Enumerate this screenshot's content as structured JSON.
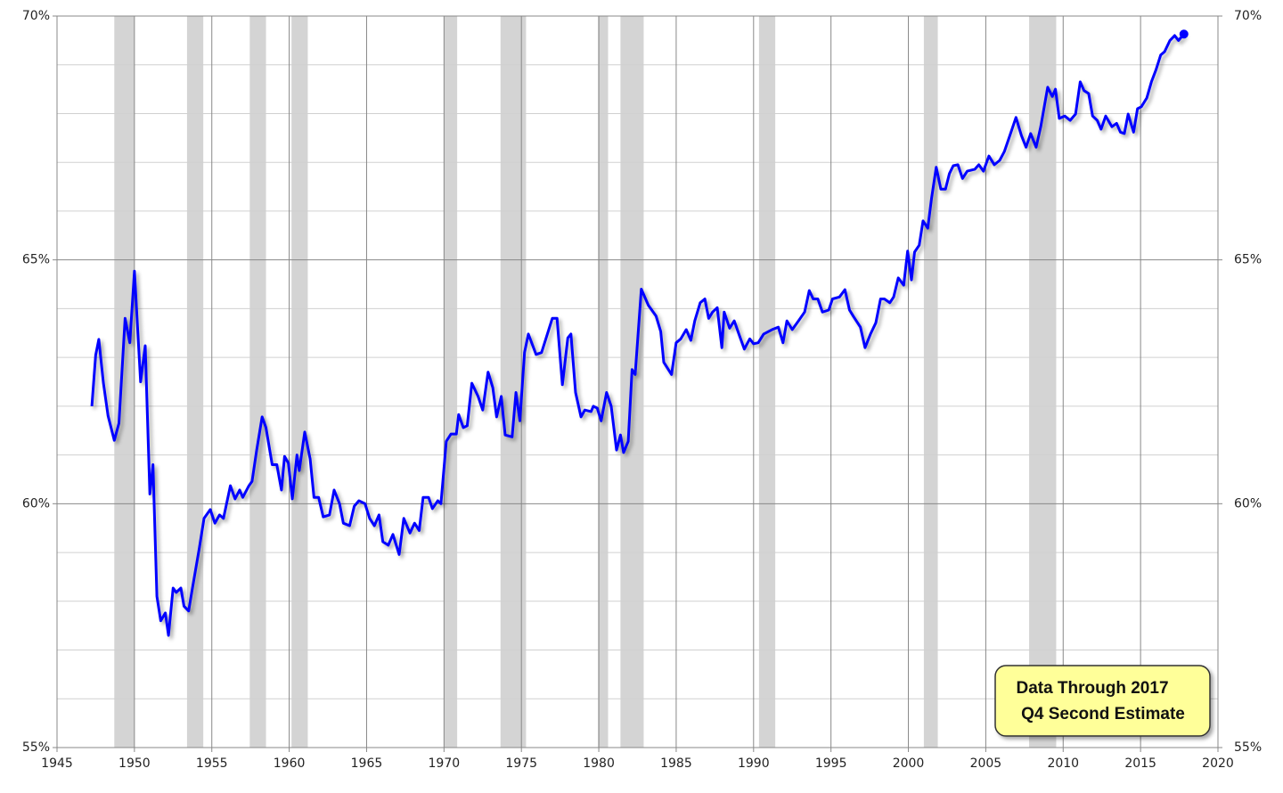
{
  "chart_data": {
    "type": "line",
    "x": [
      1947.25,
      1947.5,
      1947.7,
      1948.0,
      1948.3,
      1948.7,
      1949.0,
      1949.4,
      1949.7,
      1950.0,
      1950.4,
      1950.7,
      1951.0,
      1951.2,
      1951.45,
      1951.7,
      1952.0,
      1952.2,
      1952.5,
      1952.7,
      1953.0,
      1953.2,
      1953.5,
      1953.75,
      1954.2,
      1954.5,
      1954.9,
      1955.2,
      1955.5,
      1955.75,
      1956.2,
      1956.5,
      1956.8,
      1957.0,
      1957.4,
      1957.6,
      1957.9,
      1958.25,
      1958.5,
      1958.9,
      1959.2,
      1959.5,
      1959.7,
      1959.95,
      1960.2,
      1960.5,
      1960.65,
      1961.0,
      1961.35,
      1961.6,
      1961.9,
      1962.2,
      1962.6,
      1962.9,
      1963.25,
      1963.5,
      1963.9,
      1964.2,
      1964.5,
      1964.9,
      1965.2,
      1965.5,
      1965.8,
      1966.05,
      1966.4,
      1966.7,
      1967.1,
      1967.4,
      1967.8,
      1968.1,
      1968.4,
      1968.65,
      1969.0,
      1969.25,
      1969.6,
      1969.8,
      1970.15,
      1970.45,
      1970.8,
      1970.95,
      1971.25,
      1971.5,
      1971.8,
      1972.2,
      1972.5,
      1972.85,
      1973.15,
      1973.4,
      1973.7,
      1973.95,
      1974.4,
      1974.65,
      1974.9,
      1975.2,
      1975.45,
      1975.95,
      1976.3,
      1977.0,
      1977.3,
      1977.65,
      1978.0,
      1978.2,
      1978.5,
      1978.85,
      1979.1,
      1979.5,
      1979.65,
      1979.9,
      1980.15,
      1980.5,
      1980.8,
      1981.15,
      1981.4,
      1981.6,
      1981.9,
      1982.15,
      1982.35,
      1982.75,
      1983.2,
      1983.7,
      1984.0,
      1984.2,
      1984.7,
      1985.0,
      1985.3,
      1985.65,
      1985.95,
      1986.2,
      1986.55,
      1986.85,
      1987.1,
      1987.35,
      1987.65,
      1987.95,
      1988.1,
      1988.45,
      1988.75,
      1989.05,
      1989.4,
      1989.75,
      1990.0,
      1990.3,
      1990.65,
      1991.2,
      1991.6,
      1991.9,
      1992.15,
      1992.5,
      1992.9,
      1993.3,
      1993.6,
      1993.85,
      1994.15,
      1994.45,
      1994.85,
      1995.1,
      1995.55,
      1995.9,
      1996.2,
      1996.45,
      1996.9,
      1997.2,
      1997.55,
      1997.9,
      1998.2,
      1998.45,
      1998.8,
      1999.05,
      1999.35,
      1999.7,
      1999.95,
      2000.2,
      2000.4,
      2000.7,
      2000.95,
      2001.25,
      2001.5,
      2001.8,
      2002.1,
      2002.4,
      2002.65,
      2002.9,
      2003.2,
      2003.5,
      2003.8,
      2004.3,
      2004.55,
      2004.85,
      2005.2,
      2005.55,
      2005.9,
      2006.2,
      2006.6,
      2006.95,
      2007.3,
      2007.6,
      2007.9,
      2008.25,
      2008.55,
      2009.0,
      2009.3,
      2009.5,
      2009.75,
      2010.1,
      2010.45,
      2010.8,
      2011.1,
      2011.35,
      2011.65,
      2011.9,
      2012.2,
      2012.45,
      2012.75,
      2013.15,
      2013.45,
      2013.7,
      2013.95,
      2014.2,
      2014.55,
      2014.8,
      2015.05,
      2015.4,
      2015.7,
      2016.0,
      2016.3,
      2016.55,
      2016.9,
      2017.2,
      2017.45,
      2017.8
    ],
    "series": [
      {
        "color": "#0000ff",
        "values": [
          62.0,
          63.05,
          63.37,
          62.47,
          61.8,
          61.3,
          61.65,
          63.8,
          63.3,
          64.77,
          62.5,
          63.24,
          60.2,
          60.8,
          58.1,
          57.6,
          57.76,
          57.3,
          58.27,
          58.18,
          58.27,
          57.9,
          57.8,
          58.27,
          59.1,
          59.7,
          59.88,
          59.6,
          59.77,
          59.7,
          60.37,
          60.1,
          60.28,
          60.13,
          60.37,
          60.46,
          61.1,
          61.78,
          61.56,
          60.8,
          60.8,
          60.28,
          60.97,
          60.83,
          60.1,
          61.0,
          60.68,
          61.47,
          60.92,
          60.13,
          60.13,
          59.73,
          59.77,
          60.28,
          60.0,
          59.6,
          59.55,
          59.95,
          60.06,
          60.0,
          59.7,
          59.55,
          59.77,
          59.22,
          59.15,
          59.37,
          58.96,
          59.7,
          59.4,
          59.6,
          59.45,
          60.13,
          60.13,
          59.9,
          60.06,
          60.0,
          61.28,
          61.43,
          61.43,
          61.83,
          61.56,
          61.6,
          62.47,
          62.2,
          61.92,
          62.7,
          62.38,
          61.78,
          62.2,
          61.41,
          61.37,
          62.28,
          61.7,
          63.1,
          63.48,
          63.06,
          63.1,
          63.8,
          63.8,
          62.44,
          63.4,
          63.48,
          62.28,
          61.78,
          61.92,
          61.89,
          62.0,
          61.96,
          61.7,
          62.28,
          62.0,
          61.1,
          61.41,
          61.05,
          61.28,
          62.75,
          62.65,
          64.4,
          64.07,
          63.85,
          63.53,
          62.9,
          62.65,
          63.3,
          63.38,
          63.57,
          63.35,
          63.75,
          64.12,
          64.2,
          63.8,
          63.93,
          64.02,
          63.2,
          63.93,
          63.6,
          63.75,
          63.48,
          63.17,
          63.38,
          63.28,
          63.3,
          63.48,
          63.57,
          63.62,
          63.3,
          63.75,
          63.57,
          63.75,
          63.93,
          64.37,
          64.2,
          64.2,
          63.93,
          63.97,
          64.2,
          64.24,
          64.39,
          63.97,
          63.84,
          63.62,
          63.2,
          63.48,
          63.71,
          64.2,
          64.2,
          64.12,
          64.24,
          64.63,
          64.48,
          65.18,
          64.59,
          65.16,
          65.3,
          65.8,
          65.65,
          66.27,
          66.9,
          66.45,
          66.45,
          66.77,
          66.93,
          66.95,
          66.67,
          66.82,
          66.86,
          66.95,
          66.82,
          67.13,
          66.95,
          67.04,
          67.22,
          67.59,
          67.92,
          67.55,
          67.31,
          67.59,
          67.31,
          67.73,
          68.54,
          68.35,
          68.5,
          67.9,
          67.95,
          67.86,
          67.99,
          68.65,
          68.47,
          68.41,
          67.95,
          67.86,
          67.68,
          67.95,
          67.73,
          67.8,
          67.62,
          67.59,
          67.99,
          67.62,
          68.1,
          68.14,
          68.32,
          68.65,
          68.9,
          69.2,
          69.27,
          69.5,
          69.6,
          69.5,
          69.63
        ]
      }
    ],
    "shaded_periods": [
      [
        1948.7,
        1950.0
      ],
      [
        1953.4,
        1954.45
      ],
      [
        1957.45,
        1958.5
      ],
      [
        1960.15,
        1961.2
      ],
      [
        1970.0,
        1970.85
      ],
      [
        1973.65,
        1975.3
      ],
      [
        1979.95,
        1980.6
      ],
      [
        1981.4,
        1982.9
      ],
      [
        1990.35,
        1991.4
      ],
      [
        2001.0,
        2001.9
      ],
      [
        2007.8,
        2009.55
      ]
    ],
    "shade_color": "#d4d4d4",
    "xlim": [
      1945,
      2020
    ],
    "xticks": [
      1945,
      1950,
      1955,
      1960,
      1965,
      1970,
      1975,
      1980,
      1985,
      1990,
      1995,
      2000,
      2005,
      2010,
      2015,
      2020
    ],
    "ylim": [
      55,
      70
    ],
    "yticks": [
      {
        "value": 55,
        "label": "55%"
      },
      {
        "value": 60,
        "label": "60%"
      },
      {
        "value": 65,
        "label": "65%"
      },
      {
        "value": 70,
        "label": "70%"
      }
    ],
    "minor_yticks": [
      56,
      57,
      58,
      59,
      61,
      62,
      63,
      64,
      66,
      67,
      68,
      69
    ],
    "grid": true,
    "annotation": [
      "Data Through 2017",
      "Q4 Second Estimate"
    ]
  }
}
